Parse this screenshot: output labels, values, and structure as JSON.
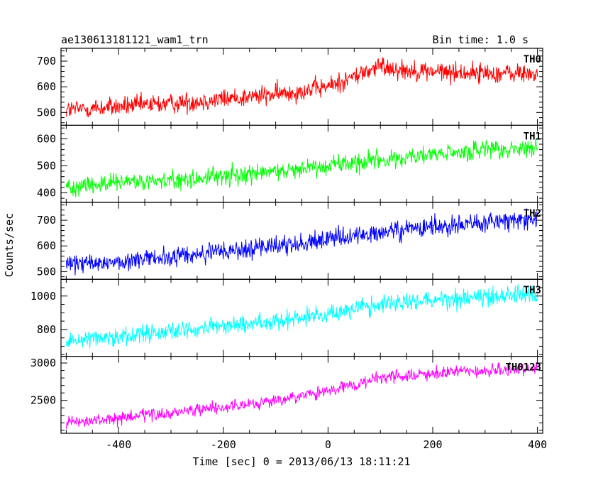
{
  "chart_data": {
    "type": "line",
    "title": "ae130613181121_wam1_trn",
    "subtitle": "Bin time: 1.0 s",
    "xlabel": "Time [sec] 0 = 2013/06/13 18:11:21",
    "ylabel": "Counts/sec",
    "xlim": [
      -510,
      410
    ],
    "xticks": [
      -400,
      -200,
      0,
      200,
      400
    ],
    "x_start": -500,
    "x_end": 400,
    "x_step": 1,
    "panels": [
      {
        "name": "TH0",
        "color": "#ff0000",
        "ylim": [
          450,
          750
        ],
        "yticks": [
          500,
          600,
          700
        ],
        "trend": [
          [
            -500,
            510
          ],
          [
            -300,
            535
          ],
          [
            -100,
            570
          ],
          [
            0,
            600
          ],
          [
            100,
            680
          ],
          [
            150,
            665
          ],
          [
            250,
            655
          ],
          [
            400,
            650
          ]
        ],
        "noise": 28
      },
      {
        "name": "TH1",
        "color": "#00ff00",
        "ylim": [
          365,
          650
        ],
        "yticks": [
          400,
          500,
          600
        ],
        "trend": [
          [
            -500,
            425
          ],
          [
            -300,
            445
          ],
          [
            -100,
            478
          ],
          [
            0,
            505
          ],
          [
            100,
            520
          ],
          [
            250,
            550
          ],
          [
            400,
            565
          ]
        ],
        "noise": 26
      },
      {
        "name": "TH2",
        "color": "#0000ff",
        "ylim": [
          470,
          770
        ],
        "yticks": [
          500,
          600,
          700
        ],
        "trend": [
          [
            -500,
            525
          ],
          [
            -300,
            555
          ],
          [
            -100,
            600
          ],
          [
            0,
            625
          ],
          [
            100,
            650
          ],
          [
            250,
            685
          ],
          [
            400,
            705
          ]
        ],
        "noise": 28
      },
      {
        "name": "TH3",
        "color": "#00ffff",
        "ylim": [
          640,
          1100
        ],
        "yticks": [
          800,
          1000
        ],
        "trend": [
          [
            -500,
            735
          ],
          [
            -300,
            790
          ],
          [
            -100,
            850
          ],
          [
            0,
            895
          ],
          [
            100,
            950
          ],
          [
            250,
            990
          ],
          [
            400,
            1015
          ]
        ],
        "noise": 40
      },
      {
        "name": "TH0123",
        "color": "#ff00ff",
        "ylim": [
          2060,
          3090
        ],
        "yticks": [
          2500,
          3000
        ],
        "trend": [
          [
            -500,
            2190
          ],
          [
            -300,
            2330
          ],
          [
            -100,
            2490
          ],
          [
            0,
            2620
          ],
          [
            100,
            2800
          ],
          [
            250,
            2880
          ],
          [
            400,
            2920
          ]
        ],
        "noise": 60
      }
    ]
  }
}
